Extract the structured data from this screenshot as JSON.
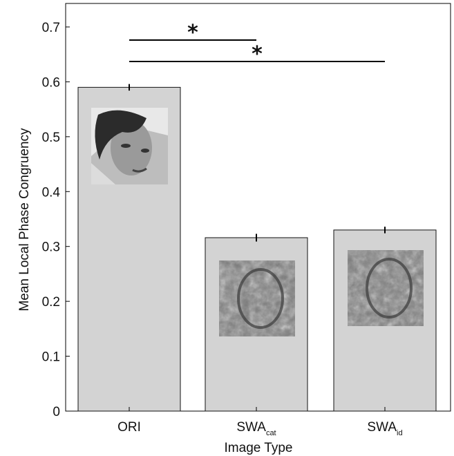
{
  "chart_data": {
    "type": "bar",
    "xlabel": "Image Type",
    "ylabel": "Mean Local Phase Congruency",
    "ylim": [
      0,
      0.7
    ],
    "yticks": [
      "0",
      "0.1",
      "0.2",
      "0.3",
      "0.4",
      "0.5",
      "0.6",
      "0.7"
    ],
    "categories": [
      {
        "main": "ORI",
        "sub": ""
      },
      {
        "main": "SWA",
        "sub": "cat"
      },
      {
        "main": "SWA",
        "sub": "id"
      }
    ],
    "values": [
      0.59,
      0.316,
      0.33
    ],
    "errors": [
      0.006,
      0.007,
      0.006
    ],
    "bar_color": "#d3d3d3",
    "thumbnails": [
      "original face photo (grayscale)",
      "scrambled face (cat)",
      "scrambled face (id)"
    ],
    "significance": [
      {
        "from": 0,
        "to": 1,
        "label": "*"
      },
      {
        "from": 0,
        "to": 2,
        "label": "*"
      }
    ]
  }
}
